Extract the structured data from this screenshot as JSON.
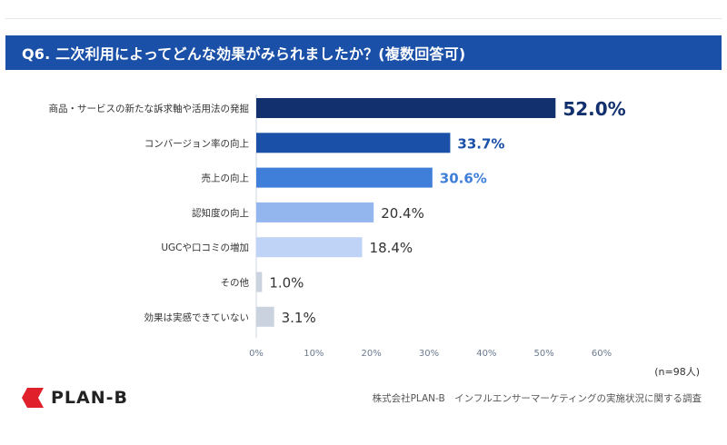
{
  "header": {
    "title": "Q6. 二次利用によってどんな効果がみられましたか？(複数回答可)"
  },
  "colors": {
    "header_bg": "#1a50a8",
    "bars": [
      "#12306e",
      "#1a50a8",
      "#3f7fd9",
      "#94b6ee",
      "#bed3f5",
      "#c9d2de",
      "#c9d2de"
    ],
    "value_labels": [
      "#12306e",
      "#1a50a8",
      "#3f7fd9",
      "#333333",
      "#333333",
      "#333333",
      "#333333"
    ]
  },
  "chart_data": {
    "type": "bar",
    "orientation": "horizontal",
    "categories": [
      "商品・サービスの新たな訴求軸や活用法の発掘",
      "コンバージョン率の向上",
      "売上の向上",
      "認知度の向上",
      "UGCや口コミの増加",
      "その他",
      "効果は実感できていない"
    ],
    "values": [
      52.0,
      33.7,
      30.6,
      20.4,
      18.4,
      1.0,
      3.1
    ],
    "value_labels": [
      "52.0%",
      "33.7%",
      "30.6%",
      "20.4%",
      "18.4%",
      "1.0%",
      "3.1%"
    ],
    "xlim": [
      0,
      60
    ],
    "xticks": [
      "0%",
      "10%",
      "20%",
      "30%",
      "40%",
      "50%",
      "60%"
    ],
    "grid": false
  },
  "footer": {
    "sample_note": "(n=98人)",
    "logo_text": "PLAN-B",
    "source": "株式会社PLAN-B　インフルエンサーマーケティングの実施状況に関する調査"
  }
}
